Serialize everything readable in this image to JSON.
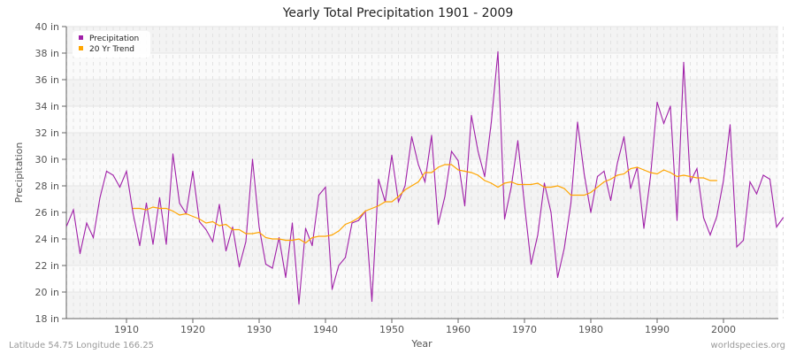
{
  "chart_data": {
    "type": "line",
    "title": "Yearly Total Precipitation 1901 - 2009",
    "xlabel": "Year",
    "ylabel": "Precipitation",
    "ylim": [
      18,
      40
    ],
    "xlim": [
      1901,
      2009
    ],
    "yticks": [
      "18 in",
      "20 in",
      "22 in",
      "24 in",
      "26 in",
      "28 in",
      "30 in",
      "32 in",
      "34 in",
      "36 in",
      "38 in",
      "40 in"
    ],
    "xticks": [
      "1910",
      "1920",
      "1930",
      "1940",
      "1950",
      "1960",
      "1970",
      "1980",
      "1990",
      "2000"
    ],
    "grid": true,
    "legend_position": "top-left",
    "series": [
      {
        "name": "Precipitation",
        "color": "#a020a8",
        "start_year": 1901,
        "values": [
          25.0,
          26.2,
          22.9,
          25.2,
          24.1,
          27.1,
          29.1,
          28.8,
          27.9,
          29.1,
          25.9,
          23.5,
          26.7,
          23.6,
          27.1,
          23.6,
          30.4,
          26.7,
          25.9,
          29.1,
          25.3,
          24.7,
          23.8,
          26.6,
          23.1,
          24.9,
          21.9,
          23.8,
          30.0,
          24.9,
          22.1,
          21.8,
          24.1,
          21.1,
          25.2,
          19.1,
          24.8,
          23.5,
          27.3,
          27.9,
          20.2,
          22.0,
          22.6,
          25.2,
          25.4,
          26.1,
          19.3,
          28.5,
          26.8,
          30.3,
          26.8,
          28.0,
          31.7,
          29.6,
          28.3,
          31.8,
          25.1,
          27.2,
          30.6,
          29.9,
          26.5,
          33.3,
          30.6,
          28.7,
          32.8,
          38.1,
          25.5,
          27.9,
          31.4,
          26.6,
          22.1,
          24.3,
          28.2,
          26.0,
          21.1,
          23.3,
          26.7,
          32.8,
          28.9,
          26.0,
          28.7,
          29.1,
          26.9,
          29.7,
          31.7,
          27.8,
          29.4,
          24.8,
          28.7,
          34.3,
          32.7,
          34.0,
          25.4,
          37.3,
          28.3,
          29.3,
          25.6,
          24.3,
          25.7,
          28.4,
          32.6,
          23.4,
          23.9,
          28.3,
          27.4,
          28.8,
          28.5,
          24.9,
          25.6
        ]
      },
      {
        "name": "20 Yr Trend",
        "color": "#ffa500",
        "start_year": 1911,
        "values": [
          26.3,
          26.3,
          26.2,
          26.4,
          26.3,
          26.3,
          26.1,
          25.8,
          25.9,
          25.7,
          25.5,
          25.2,
          25.3,
          25.0,
          25.1,
          24.7,
          24.7,
          24.4,
          24.4,
          24.5,
          24.1,
          24.0,
          24.0,
          23.9,
          23.9,
          24.0,
          23.7,
          24.1,
          24.2,
          24.2,
          24.3,
          24.6,
          25.1,
          25.3,
          25.6,
          26.1,
          26.3,
          26.5,
          26.8,
          26.8,
          27.2,
          27.7,
          28.0,
          28.3,
          29.0,
          29.0,
          29.4,
          29.6,
          29.6,
          29.2,
          29.1,
          29.0,
          28.8,
          28.4,
          28.2,
          27.9,
          28.2,
          28.3,
          28.1,
          28.1,
          28.1,
          28.2,
          27.9,
          27.9,
          28.0,
          27.8,
          27.3,
          27.3,
          27.3,
          27.5,
          27.9,
          28.3,
          28.5,
          28.8,
          28.9,
          29.3,
          29.4,
          29.2,
          29.0,
          28.9,
          29.2,
          29.0,
          28.7,
          28.8,
          28.7,
          28.6,
          28.6,
          28.4,
          28.4
        ]
      }
    ]
  },
  "footer": {
    "location": "Latitude 54.75 Longitude 166.25",
    "site": "worldspecies.org"
  }
}
